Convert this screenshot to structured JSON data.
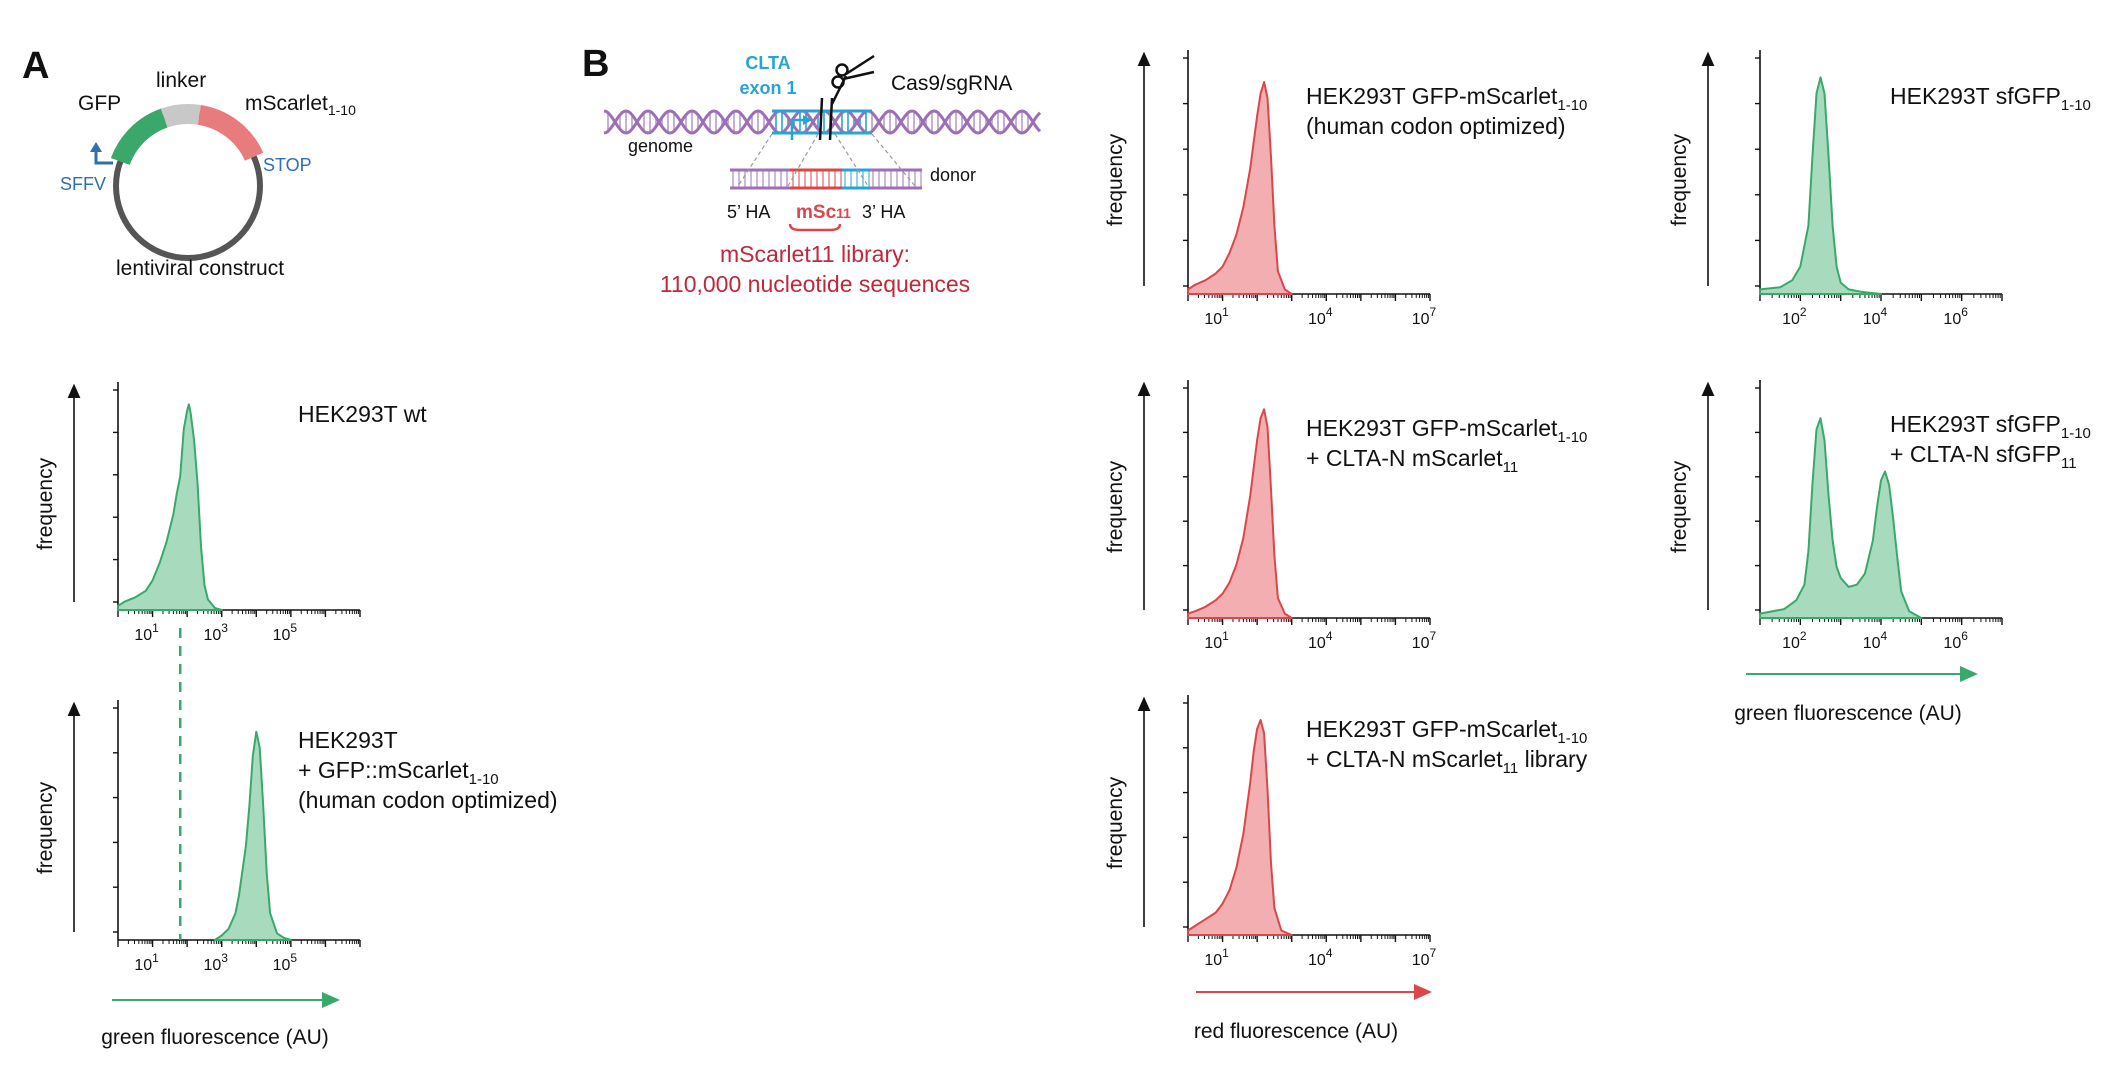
{
  "panels": {
    "A": {
      "letter": "A",
      "construct": {
        "gfp_label": "GFP",
        "linker_label": "linker",
        "mscarlet_label": "mScarlet",
        "mscarlet_sub": "1-10",
        "promoter_label": "SFFV",
        "stop_label": "STOP",
        "caption": "lentiviral construct"
      }
    },
    "B": {
      "letter": "B",
      "scheme": {
        "clta_label": "CLTA",
        "exon_label": "exon 1",
        "cas9_label": "Cas9/sgRNA",
        "genome_label": "genome",
        "donor_label": "donor",
        "ha5_label": "5’ HA",
        "ha3_label": "3’ HA",
        "msc_label": "mSc",
        "msc_sub": "11",
        "library_line1": "mScarlet11 library:",
        "library_line2": "110,000 nucleotide sequences"
      }
    }
  },
  "colors": {
    "green": "#3aa86b",
    "green_fill": "#a8dbbd",
    "red": "#d9474b",
    "red_fill": "#f2aeb0",
    "cyan": "#29a3d6",
    "purple": "#9c6fb6"
  },
  "icons": {
    "scissors": "scissors-icon"
  },
  "chart_data": [
    {
      "id": "a1",
      "type": "area",
      "color": "green",
      "title_lines": [
        "HEK293T wt"
      ],
      "ylabel": "frequency",
      "xlabel": "",
      "x_scale": "log",
      "xlim": [
        0,
        7
      ],
      "xtick_exponents": [
        1,
        3,
        5
      ],
      "x": [
        0,
        0.2,
        0.5,
        0.8,
        1.0,
        1.2,
        1.4,
        1.6,
        1.7,
        1.8,
        1.9,
        2.0,
        2.05,
        2.1,
        2.2,
        2.3,
        2.4,
        2.5,
        2.6,
        2.8,
        3.0
      ],
      "y": [
        0.02,
        0.04,
        0.06,
        0.09,
        0.14,
        0.22,
        0.32,
        0.45,
        0.55,
        0.63,
        0.85,
        0.94,
        0.97,
        0.93,
        0.8,
        0.6,
        0.3,
        0.12,
        0.05,
        0.01,
        0
      ]
    },
    {
      "id": "a2",
      "type": "area",
      "color": "green",
      "title_lines": [
        "HEK293T",
        "+ GFP::mScarlet",
        "(human codon optimized)"
      ],
      "title_sub": {
        "line": 1,
        "text": "1-10"
      },
      "ylabel": "frequency",
      "xlabel": "green fluorescence (AU)",
      "x_scale": "log",
      "xlim": [
        0,
        7
      ],
      "xtick_exponents": [
        1,
        3,
        5
      ],
      "dashed_x": 1.8,
      "x": [
        2.8,
        3.0,
        3.2,
        3.4,
        3.5,
        3.7,
        3.8,
        3.9,
        4.0,
        4.1,
        4.2,
        4.3,
        4.4,
        4.6,
        4.8,
        5.0
      ],
      "y": [
        0,
        0.02,
        0.05,
        0.12,
        0.2,
        0.42,
        0.6,
        0.82,
        0.93,
        0.86,
        0.6,
        0.3,
        0.12,
        0.03,
        0.01,
        0
      ]
    },
    {
      "id": "b1",
      "type": "area",
      "color": "red",
      "title_lines": [
        "HEK293T GFP-mScarlet",
        "(human codon optimized)"
      ],
      "title_sub": {
        "line": 0,
        "text": "1-10"
      },
      "ylabel": "frequency",
      "xlabel": "",
      "x_scale": "log",
      "xlim": [
        0,
        7
      ],
      "xtick_exponents": [
        1,
        4,
        7
      ],
      "x": [
        0,
        0.2,
        0.5,
        0.8,
        1.0,
        1.2,
        1.4,
        1.6,
        1.8,
        2.0,
        2.1,
        2.2,
        2.3,
        2.4,
        2.5,
        2.6,
        2.8,
        3.0
      ],
      "y": [
        0.02,
        0.04,
        0.06,
        0.09,
        0.12,
        0.18,
        0.26,
        0.38,
        0.55,
        0.78,
        0.88,
        0.93,
        0.86,
        0.6,
        0.3,
        0.1,
        0.02,
        0
      ]
    },
    {
      "id": "b2",
      "type": "area",
      "color": "red",
      "title_lines": [
        "HEK293T GFP-mScarlet",
        "+ CLTA-N mScarlet"
      ],
      "title_sub": {
        "line": 0,
        "text": "1-10"
      },
      "title_sub2": {
        "line": 1,
        "text": "11"
      },
      "ylabel": "frequency",
      "xlabel": "",
      "x_scale": "log",
      "xlim": [
        0,
        7
      ],
      "xtick_exponents": [
        1,
        4,
        7
      ],
      "x": [
        0,
        0.2,
        0.5,
        0.8,
        1.0,
        1.2,
        1.4,
        1.6,
        1.8,
        2.0,
        2.1,
        2.2,
        2.3,
        2.4,
        2.5,
        2.6,
        2.8,
        3.0
      ],
      "y": [
        0.02,
        0.03,
        0.05,
        0.08,
        0.11,
        0.16,
        0.24,
        0.36,
        0.55,
        0.8,
        0.9,
        0.94,
        0.86,
        0.58,
        0.28,
        0.09,
        0.02,
        0
      ]
    },
    {
      "id": "b3",
      "type": "area",
      "color": "red",
      "title_lines": [
        "HEK293T GFP-mScarlet",
        "+ CLTA-N mScarlet library"
      ],
      "title_sub": {
        "line": 0,
        "text": "1-10"
      },
      "title_sub2": {
        "line": 1,
        "text": "11",
        "after": "+ CLTA-N mScarlet"
      },
      "ylabel": "frequency",
      "xlabel": "red fluorescence (AU)",
      "x_scale": "log",
      "xlim": [
        0,
        7
      ],
      "xtick_exponents": [
        1,
        4,
        7
      ],
      "x": [
        0,
        0.2,
        0.5,
        0.8,
        1.0,
        1.2,
        1.4,
        1.6,
        1.8,
        1.9,
        2.0,
        2.1,
        2.2,
        2.3,
        2.4,
        2.5,
        2.7,
        3.0
      ],
      "y": [
        0.02,
        0.04,
        0.07,
        0.1,
        0.14,
        0.2,
        0.3,
        0.45,
        0.68,
        0.82,
        0.92,
        0.96,
        0.9,
        0.65,
        0.32,
        0.12,
        0.02,
        0
      ]
    },
    {
      "id": "c1",
      "type": "area",
      "color": "green",
      "title_lines": [
        "HEK293T sfGFP"
      ],
      "title_sub": {
        "line": 0,
        "text": "1-10"
      },
      "ylabel": "frequency",
      "xlabel": "",
      "x_scale": "log",
      "xlim": [
        1,
        7
      ],
      "xtick_exponents": [
        2,
        4,
        6
      ],
      "x": [
        1.0,
        1.5,
        1.8,
        2.0,
        2.2,
        2.3,
        2.4,
        2.5,
        2.6,
        2.7,
        2.8,
        2.9,
        3.0,
        3.2,
        3.5,
        4.0
      ],
      "y": [
        0.02,
        0.03,
        0.06,
        0.12,
        0.3,
        0.6,
        0.88,
        0.95,
        0.88,
        0.6,
        0.3,
        0.12,
        0.05,
        0.02,
        0.01,
        0
      ]
    },
    {
      "id": "c2",
      "type": "area",
      "color": "green",
      "title_lines": [
        "HEK293T sfGFP",
        "+ CLTA-N sfGFP"
      ],
      "title_sub": {
        "line": 0,
        "text": "1-10"
      },
      "title_sub2": {
        "line": 1,
        "text": "11"
      },
      "ylabel": "frequency",
      "xlabel": "green fluorescence (AU)",
      "x_scale": "log",
      "xlim": [
        1,
        7
      ],
      "xtick_exponents": [
        2,
        4,
        6
      ],
      "x": [
        1.0,
        1.6,
        1.9,
        2.1,
        2.2,
        2.3,
        2.4,
        2.5,
        2.6,
        2.7,
        2.8,
        2.9,
        3.0,
        3.2,
        3.4,
        3.6,
        3.8,
        3.9,
        4.0,
        4.1,
        4.2,
        4.3,
        4.4,
        4.5,
        4.7,
        5.0
      ],
      "y": [
        0.02,
        0.04,
        0.08,
        0.15,
        0.3,
        0.6,
        0.85,
        0.9,
        0.8,
        0.55,
        0.35,
        0.23,
        0.18,
        0.14,
        0.15,
        0.2,
        0.35,
        0.5,
        0.62,
        0.66,
        0.6,
        0.45,
        0.28,
        0.12,
        0.03,
        0
      ]
    }
  ]
}
